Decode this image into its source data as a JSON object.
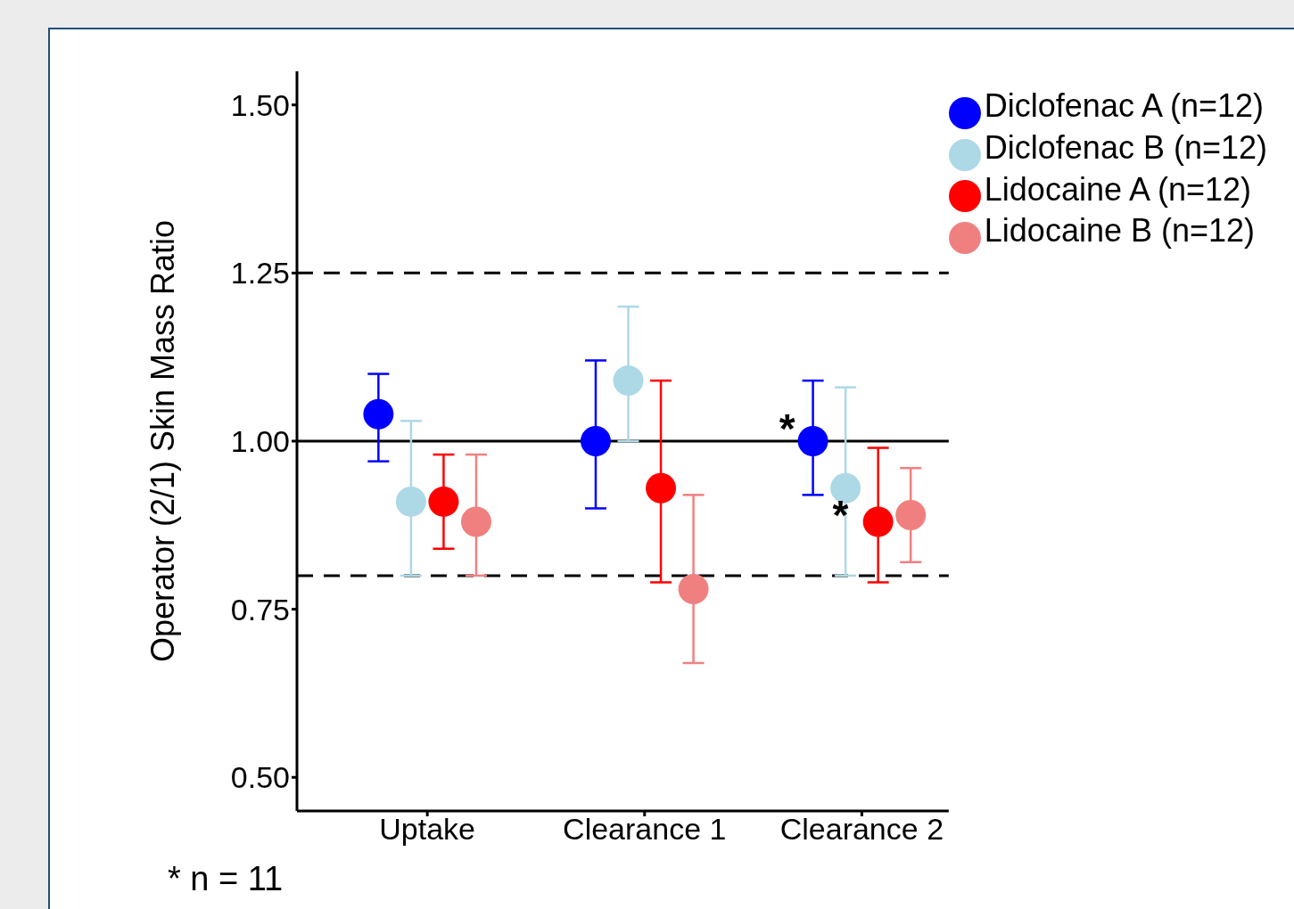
{
  "chart_data": {
    "type": "scatter",
    "ylabel": "Operator (2/1) Skin Mass Ratio",
    "categories": [
      "Uptake",
      "Clearance 1",
      "Clearance 2"
    ],
    "ylim": [
      0.45,
      1.55
    ],
    "yticks": [
      {
        "value": 0.5,
        "label": "0.50"
      },
      {
        "value": 0.75,
        "label": "0.75"
      },
      {
        "value": 1.0,
        "label": "1.00"
      },
      {
        "value": 1.25,
        "label": "1.25"
      },
      {
        "value": 1.5,
        "label": "1.50"
      }
    ],
    "grid": false,
    "legend": "top right",
    "marker": "circle",
    "series": [
      {
        "name": "Diclofenac A (n=12)",
        "color": "#0000ff",
        "values": [
          1.04,
          1.0,
          1.0
        ],
        "errors": [
          [
            0.97,
            1.1
          ],
          [
            0.9,
            1.12
          ],
          [
            0.92,
            1.09
          ]
        ]
      },
      {
        "name": "Diclofenac B (n=12)",
        "color": "#add8e6",
        "values": [
          0.91,
          1.09,
          0.93
        ],
        "errors": [
          [
            0.8,
            1.03
          ],
          [
            1.0,
            1.2
          ],
          [
            0.8,
            1.08
          ]
        ]
      },
      {
        "name": "Lidocaine A (n=12)",
        "color": "#ff0000",
        "values": [
          0.91,
          0.93,
          0.88
        ],
        "errors": [
          [
            0.84,
            0.98
          ],
          [
            0.79,
            1.09
          ],
          [
            0.79,
            0.99
          ]
        ]
      },
      {
        "name": "Lidocaine B (n=12)",
        "color": "#f08080",
        "values": [
          0.88,
          0.78,
          0.89
        ],
        "errors": [
          [
            0.8,
            0.98
          ],
          [
            0.67,
            0.92
          ],
          [
            0.82,
            0.96
          ]
        ]
      }
    ],
    "ref_lines": [
      {
        "axis": "y",
        "value": 1.25,
        "line_style": "dashed",
        "color": "#000000"
      },
      {
        "axis": "y",
        "value": 1.0,
        "line_style": "solid",
        "color": "#000000"
      },
      {
        "axis": "y",
        "value": 0.8,
        "line_style": "dashed",
        "color": "#000000"
      }
    ],
    "annotations": [
      {
        "text": "*",
        "x": "Clearance 2",
        "y": 1.0
      },
      {
        "text": "*",
        "x": "Clearance 2",
        "y": 0.92
      },
      "* n = 11"
    ]
  }
}
